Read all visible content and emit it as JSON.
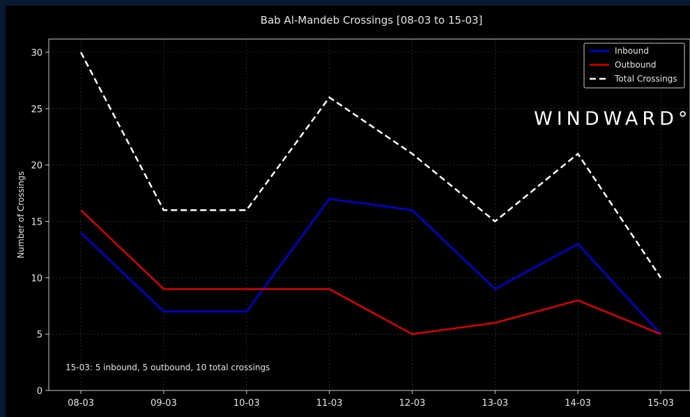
{
  "chart_data": {
    "type": "line",
    "title": "Bab Al-Mandeb Crossings [08-03 to 15-03]",
    "xlabel": "",
    "ylabel": "Number of Crossings",
    "categories": [
      "08-03",
      "09-03",
      "10-03",
      "11-03",
      "12-03",
      "13-03",
      "14-03",
      "15-03"
    ],
    "ylim": [
      0,
      31
    ],
    "yticks": [
      0,
      5,
      10,
      15,
      20,
      25,
      30
    ],
    "grid": true,
    "legend_position": "top-right",
    "series": [
      {
        "name": "Inbound",
        "values": [
          14,
          7,
          7,
          17,
          16,
          9,
          13,
          5
        ],
        "color": "#0000dd",
        "style": "solid"
      },
      {
        "name": "Outbound",
        "values": [
          16,
          9,
          9,
          9,
          5,
          6,
          8,
          5
        ],
        "color": "#dd0000",
        "style": "solid"
      },
      {
        "name": "Total Crossings",
        "values": [
          30,
          16,
          16,
          26,
          21,
          15,
          21,
          10
        ],
        "color": "#ffffff",
        "style": "dashed"
      }
    ],
    "annotation": "15-03: 5 inbound, 5 outbound, 10 total crossings"
  },
  "watermark": "WINDWARD°",
  "colors": {
    "background": "#000000",
    "frame": "#0b1a33",
    "text": "#e6e6e6",
    "grid": "#444444"
  }
}
